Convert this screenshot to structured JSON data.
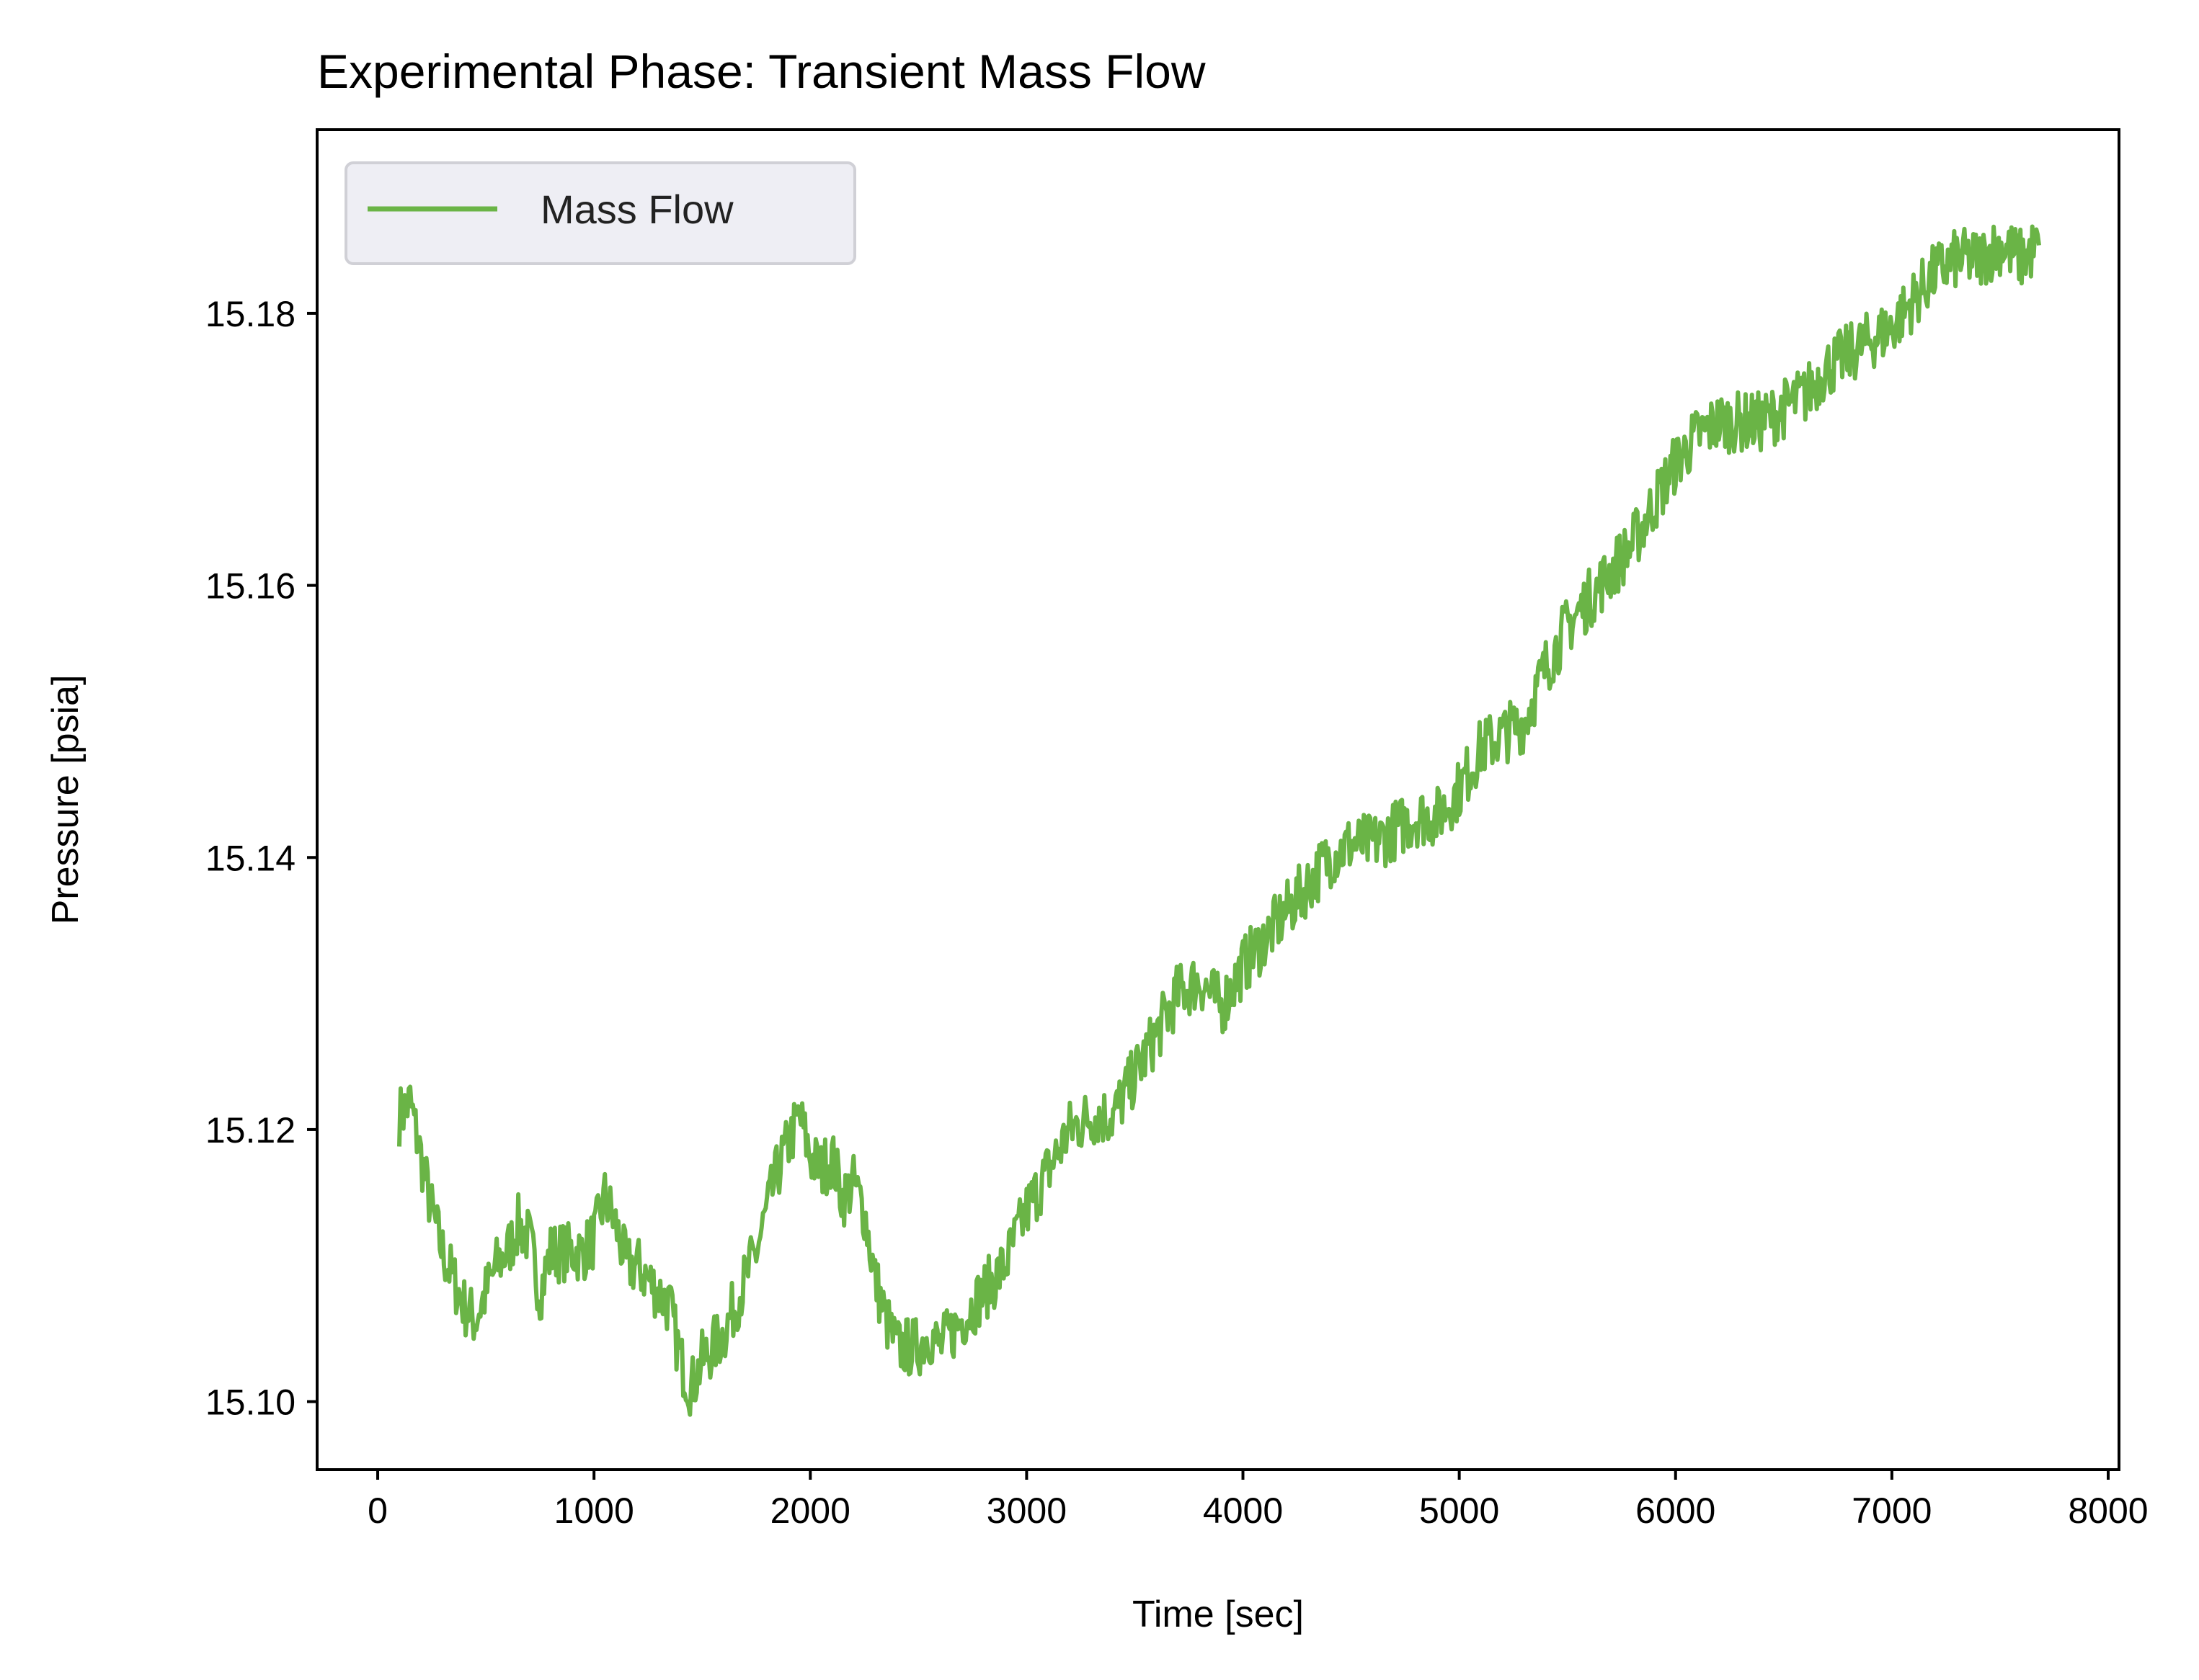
{
  "chart_data": {
    "type": "line",
    "title": "Experimental Phase: Transient Mass Flow",
    "xlabel": "Time [sec]",
    "ylabel": "Pressure [psia]",
    "xlim": [
      -280,
      8050
    ],
    "ylim": [
      15.095,
      15.1935
    ],
    "xticks": [
      0,
      1000,
      2000,
      3000,
      4000,
      5000,
      6000,
      7000,
      8000
    ],
    "xtick_labels": [
      "0",
      "1000",
      "2000",
      "3000",
      "4000",
      "5000",
      "6000",
      "7000",
      "8000"
    ],
    "yticks": [
      15.1,
      15.12,
      15.14,
      15.16,
      15.18
    ],
    "ytick_labels": [
      "15.10",
      "15.12",
      "15.14",
      "15.16",
      "15.18"
    ],
    "grid": false,
    "legend": {
      "position": "top-left",
      "entries": [
        "Mass Flow"
      ]
    },
    "series": [
      {
        "name": "Mass Flow",
        "color": "#6ab446",
        "x": [
          100,
          150,
          200,
          250,
          300,
          350,
          400,
          450,
          500,
          550,
          600,
          650,
          700,
          750,
          800,
          850,
          900,
          950,
          1000,
          1050,
          1100,
          1150,
          1200,
          1250,
          1300,
          1350,
          1400,
          1450,
          1500,
          1550,
          1600,
          1650,
          1700,
          1750,
          1800,
          1850,
          1900,
          1950,
          2000,
          2050,
          2100,
          2150,
          2200,
          2250,
          2300,
          2350,
          2400,
          2450,
          2500,
          2550,
          2600,
          2650,
          2700,
          2750,
          2800,
          2850,
          2900,
          2950,
          3000,
          3100,
          3200,
          3300,
          3400,
          3500,
          3600,
          3700,
          3800,
          3900,
          4000,
          4100,
          4200,
          4300,
          4400,
          4500,
          4600,
          4700,
          4800,
          4900,
          5000,
          5100,
          5200,
          5300,
          5400,
          5500,
          5600,
          5700,
          5800,
          5900,
          6000,
          6100,
          6200,
          6300,
          6400,
          6500,
          6600,
          6700,
          6800,
          6900,
          7000,
          7100,
          7200,
          7300,
          7400,
          7500,
          7600,
          7680
        ],
        "y": [
          15.121,
          15.122,
          15.118,
          15.114,
          15.111,
          15.109,
          15.107,
          15.106,
          15.108,
          15.11,
          15.111,
          15.113,
          15.112,
          15.108,
          15.111,
          15.111,
          15.111,
          15.111,
          15.112,
          15.115,
          15.113,
          15.11,
          15.11,
          15.109,
          15.108,
          15.107,
          15.103,
          15.101,
          15.103,
          15.104,
          15.105,
          15.107,
          15.109,
          15.111,
          15.114,
          15.117,
          15.119,
          15.121,
          15.118,
          15.117,
          15.118,
          15.115,
          15.116,
          15.114,
          15.109,
          15.106,
          15.104,
          15.104,
          15.104,
          15.105,
          15.104,
          15.105,
          15.106,
          15.107,
          15.108,
          15.109,
          15.11,
          15.112,
          15.114,
          15.117,
          15.12,
          15.121,
          15.121,
          15.124,
          15.127,
          15.13,
          15.131,
          15.129,
          15.132,
          15.134,
          15.136,
          15.138,
          15.14,
          15.141,
          15.141,
          15.142,
          15.143,
          15.143,
          15.145,
          15.148,
          15.149,
          15.15,
          15.154,
          15.157,
          15.159,
          15.161,
          15.163,
          15.166,
          15.169,
          15.171,
          15.172,
          15.172,
          15.172,
          15.173,
          15.174,
          15.176,
          15.177,
          15.178,
          15.179,
          15.181,
          15.183,
          15.184,
          15.184,
          15.185,
          15.184,
          15.185
        ]
      }
    ]
  }
}
